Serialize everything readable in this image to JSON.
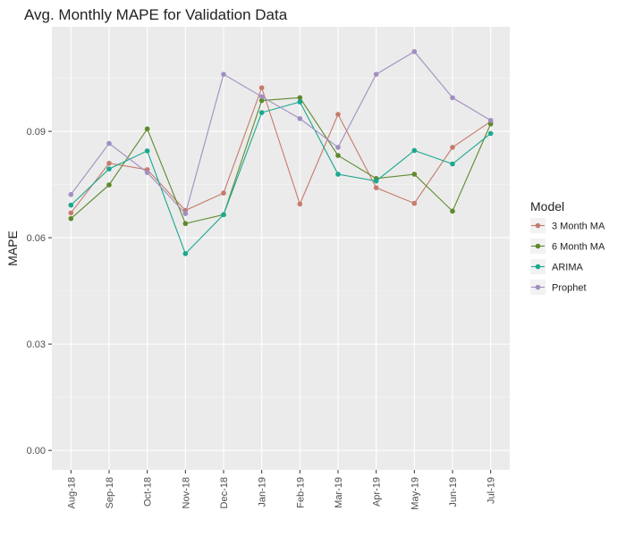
{
  "chart_data": {
    "type": "line",
    "title": "Avg. Monthly MAPE for Validation Data",
    "xlabel": "",
    "ylabel": "MAPE",
    "categories": [
      "Aug-18",
      "Sep-18",
      "Oct-18",
      "Nov-18",
      "Dec-18",
      "Jan-19",
      "Feb-19",
      "Mar-19",
      "Apr-19",
      "May-19",
      "Jun-19",
      "Jul-19"
    ],
    "ylim": [
      -0.0055,
      0.1195
    ],
    "yticks": [
      0.0,
      0.03,
      0.06,
      0.09
    ],
    "ytick_labels": [
      "0.00",
      "0.03",
      "0.06",
      "0.09"
    ],
    "grid": true,
    "legend": {
      "title": "Model",
      "position": "right"
    },
    "series": [
      {
        "name": "3 Month MA",
        "color": "#c67b6c",
        "values": [
          0.067,
          0.081,
          0.0792,
          0.0677,
          0.0726,
          0.1023,
          0.0695,
          0.0948,
          0.0741,
          0.0697,
          0.0855,
          0.0928
        ]
      },
      {
        "name": "6 Month MA",
        "color": "#5e8a2e",
        "values": [
          0.0654,
          0.0749,
          0.0907,
          0.064,
          0.0665,
          0.0987,
          0.0995,
          0.0832,
          0.0767,
          0.0779,
          0.0675,
          0.0921
        ]
      },
      {
        "name": "ARIMA",
        "color": "#1aa88e",
        "values": [
          0.0692,
          0.0794,
          0.0845,
          0.0555,
          0.0665,
          0.0953,
          0.0983,
          0.0779,
          0.076,
          0.0846,
          0.0808,
          0.0894
        ]
      },
      {
        "name": "Prophet",
        "color": "#a08fc0",
        "values": [
          0.0722,
          0.0866,
          0.0784,
          0.0668,
          0.1061,
          0.0998,
          0.0936,
          0.0855,
          0.1061,
          0.1125,
          0.0995,
          0.0931
        ]
      }
    ]
  }
}
